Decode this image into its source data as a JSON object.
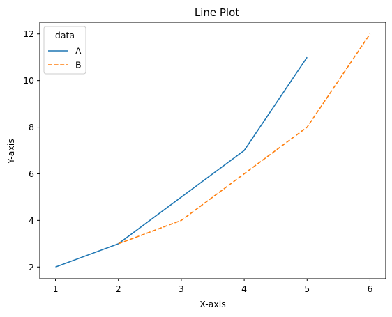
{
  "chart_data": {
    "type": "line",
    "title": "Line Plot",
    "xlabel": "X-axis",
    "ylabel": "Y-axis",
    "xlim": [
      0.75,
      6.25
    ],
    "ylim": [
      1.5,
      12.5
    ],
    "xticks": [
      1,
      2,
      3,
      4,
      5,
      6
    ],
    "yticks": [
      2,
      4,
      6,
      8,
      10,
      12
    ],
    "grid": false,
    "legend": {
      "title": "data",
      "placement": "upper-left"
    },
    "series": [
      {
        "name": "A",
        "x": [
          1,
          2,
          3,
          4,
          5
        ],
        "y": [
          2,
          3,
          5,
          7,
          11
        ],
        "color": "#1f77b4",
        "linestyle": "solid"
      },
      {
        "name": "B",
        "x": [
          2,
          3,
          4,
          5,
          6
        ],
        "y": [
          3,
          4,
          6,
          8,
          12
        ],
        "color": "#ff7f0e",
        "linestyle": "dashed"
      }
    ]
  }
}
